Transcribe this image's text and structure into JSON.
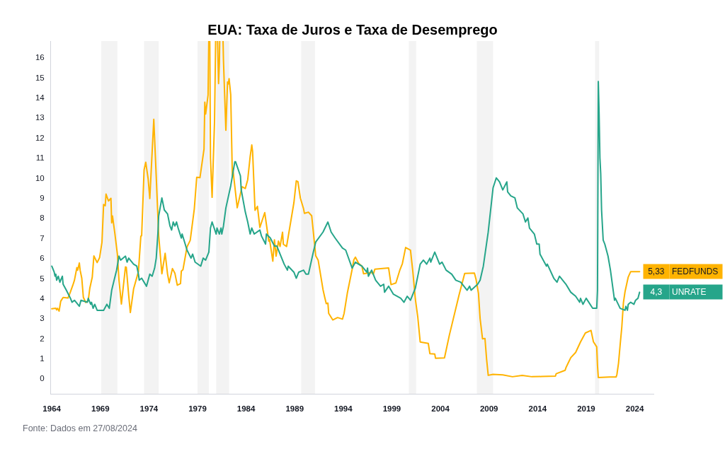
{
  "chart_data": {
    "type": "line",
    "title": "EUA: Taxa de Juros e Taxa de Desemprego",
    "annotations": [
      "Fonte: Dados em 27/08/2024"
    ],
    "legend": "right",
    "xlim": [
      "1963-12",
      "2026-01"
    ],
    "xticks": [
      "1964",
      "1969",
      "1974",
      "1979",
      "1984",
      "1989",
      "1994",
      "1999",
      "2004",
      "2009",
      "2014",
      "2019",
      "2024"
    ],
    "ylim": [
      -0.76,
      16.82
    ],
    "yticks": [
      0,
      1,
      2,
      3,
      4,
      5,
      6,
      7,
      8,
      9,
      10,
      11,
      12,
      13,
      14,
      15,
      16
    ],
    "bands": [
      {
        "axis": "x",
        "from": "1969-02",
        "to": "1970-10",
        "color": "#f3f3f3"
      },
      {
        "axis": "x",
        "from": "1973-07",
        "to": "1975-01",
        "color": "#f3f3f3"
      },
      {
        "axis": "x",
        "from": "1979-01",
        "to": "1980-03",
        "color": "#f3f3f3"
      },
      {
        "axis": "x",
        "from": "1980-12",
        "to": "1982-04",
        "color": "#f3f3f3"
      },
      {
        "axis": "x",
        "from": "1989-09",
        "to": "1991-02",
        "color": "#f3f3f3"
      },
      {
        "axis": "x",
        "from": "2000-10",
        "to": "2001-07",
        "color": "#f3f3f3"
      },
      {
        "axis": "x",
        "from": "2007-10",
        "to": "2009-06",
        "color": "#f3f3f3"
      },
      {
        "axis": "x",
        "from": "2019-12",
        "to": "2020-05",
        "color": "#f3f3f3"
      }
    ],
    "series": [
      {
        "name": "FEDFUNDS",
        "color": "#ffb300",
        "x": [
          "1964-01",
          "1964-06",
          "1964-07",
          "1964-08",
          "1964-10",
          "1964-12",
          "1965-03",
          "1965-09",
          "1965-12",
          "1966-03",
          "1966-05",
          "1966-08",
          "1966-09",
          "1966-11",
          "1966-12",
          "1967-02",
          "1967-04",
          "1967-07",
          "1967-10",
          "1967-12",
          "1968-03",
          "1968-05",
          "1968-09",
          "1968-12",
          "1969-03",
          "1969-05",
          "1969-07",
          "1969-08",
          "1969-11",
          "1970-02",
          "1970-03",
          "1970-04",
          "1970-07",
          "1970-10",
          "1970-12",
          "1971-03",
          "1971-08",
          "1971-09",
          "1971-12",
          "1972-02",
          "1972-06",
          "1972-12",
          "1973-03",
          "1973-04",
          "1973-07",
          "1973-09",
          "1973-12",
          "1974-02",
          "1974-07",
          "1974-10",
          "1975-01",
          "1975-05",
          "1975-09",
          "1975-12",
          "1976-02",
          "1976-06",
          "1976-09",
          "1976-12",
          "1977-04",
          "1977-05",
          "1977-07",
          "1977-12",
          "1978-04",
          "1978-09",
          "1978-12",
          "1979-04",
          "1979-09",
          "1979-10",
          "1979-11",
          "1980-02",
          "1980-02-27",
          "1980-03",
          "1980-04-05",
          "1980-05",
          "1980-07",
          "1980-10",
          "1980-11",
          "1980-11-10",
          "1980-12",
          "1981-01-23",
          "1981-03",
          "1981-04",
          "1981-04-13",
          "1981-06",
          "1981-08-17",
          "1981-09",
          "1981-12",
          "1982-02",
          "1982-03",
          "1982-04",
          "1982-06",
          "1982-08",
          "1982-09",
          "1983-02",
          "1983-08",
          "1983-12",
          "1984-03",
          "1984-06",
          "1984-08",
          "1984-09",
          "1984-12",
          "1985-03",
          "1985-06",
          "1985-12",
          "1986-05",
          "1986-06",
          "1986-10",
          "1986-12",
          "1987-02",
          "1987-05",
          "1987-07",
          "1987-10",
          "1987-11",
          "1988-03",
          "1988-12",
          "1989-03",
          "1989-05",
          "1989-08",
          "1989-12",
          "1990-01",
          "1990-06",
          "1990-10",
          "1990-12",
          "1991-03",
          "1991-06",
          "1991-12",
          "1992-02",
          "1992-04",
          "1992-06",
          "1992-07",
          "1992-12",
          "1993-06",
          "1993-12",
          "1994-02",
          "1994-06",
          "1994-12",
          "1995-02",
          "1995-04",
          "1995-08",
          "1995-12",
          "1996-02",
          "1996-12",
          "1997-02",
          "1997-04",
          "1998-09",
          "1998-12",
          "1999-06",
          "1999-11",
          "2000-02",
          "2000-06",
          "2000-12",
          "2001-03",
          "2001-06",
          "2001-09",
          "2001-12",
          "2002-10",
          "2002-12",
          "2003-06",
          "2003-07",
          "2004-06",
          "2004-12",
          "2005-12",
          "2006-07",
          "2007-07",
          "2007-09",
          "2007-12",
          "2008-02",
          "2008-05",
          "2008-08",
          "2008-10",
          "2008-12",
          "2009-06",
          "2010-06",
          "2011-06",
          "2012-06",
          "2013-06",
          "2014-06",
          "2015-11",
          "2015-12",
          "2016-11",
          "2016-12",
          "2017-03",
          "2017-06",
          "2017-12",
          "2018-06",
          "2018-12",
          "2019-07",
          "2019-10",
          "2020-02",
          "2020-03",
          "2020-04",
          "2021-06",
          "2022-02",
          "2022-03",
          "2022-05",
          "2022-07",
          "2022-09",
          "2022-11",
          "2023-01",
          "2023-05",
          "2023-08",
          "2024-07"
        ],
        "values": [
          3.48,
          3.5,
          3.42,
          3.5,
          3.36,
          3.85,
          4.04,
          4.01,
          4.32,
          4.65,
          4.9,
          5.53,
          5.4,
          5.76,
          5.4,
          5.0,
          4.05,
          3.79,
          3.88,
          4.51,
          5.05,
          6.11,
          5.78,
          6.02,
          6.79,
          8.67,
          8.61,
          9.19,
          8.85,
          8.98,
          7.76,
          8.1,
          7.21,
          6.2,
          4.9,
          3.71,
          5.56,
          5.55,
          4.14,
          3.29,
          4.46,
          5.33,
          7.09,
          7.12,
          10.4,
          10.78,
          9.95,
          8.97,
          12.92,
          10.06,
          7.13,
          5.22,
          6.24,
          5.2,
          4.77,
          5.48,
          5.25,
          4.65,
          4.73,
          5.35,
          5.42,
          6.56,
          6.89,
          8.45,
          10.03,
          10.01,
          11.43,
          13.77,
          13.18,
          14.13,
          16.8,
          null,
          16.8,
          10.98,
          9.03,
          12.81,
          15.85,
          16.8,
          null,
          16.8,
          14.7,
          15.72,
          16.8,
          null,
          16.8,
          15.87,
          12.37,
          14.78,
          14.68,
          14.94,
          14.15,
          10.12,
          10.31,
          8.51,
          9.56,
          9.47,
          9.91,
          11.06,
          11.64,
          11.3,
          8.38,
          8.58,
          7.53,
          8.27,
          6.85,
          6.92,
          5.85,
          6.91,
          6.1,
          6.85,
          6.58,
          7.29,
          6.69,
          6.58,
          8.76,
          9.85,
          9.81,
          8.99,
          8.45,
          8.23,
          8.29,
          8.11,
          7.31,
          6.12,
          5.9,
          4.43,
          4.06,
          3.73,
          3.76,
          3.25,
          2.92,
          3.04,
          2.96,
          3.25,
          4.25,
          5.45,
          5.92,
          6.05,
          5.74,
          5.6,
          5.22,
          5.29,
          5.19,
          5.45,
          5.51,
          4.68,
          4.76,
          5.42,
          5.73,
          6.53,
          6.4,
          5.31,
          3.97,
          3.07,
          1.82,
          1.75,
          1.24,
          1.22,
          1.01,
          1.03,
          2.16,
          4.16,
          5.24,
          5.26,
          4.94,
          4.24,
          2.98,
          1.98,
          2.0,
          0.97,
          0.16,
          0.21,
          0.18,
          0.09,
          0.16,
          0.09,
          0.1,
          0.12,
          0.24,
          0.41,
          0.54,
          0.79,
          1.04,
          1.3,
          1.82,
          2.27,
          2.4,
          1.83,
          1.58,
          0.65,
          0.05,
          0.08,
          0.08,
          0.2,
          0.77,
          1.68,
          2.56,
          3.78,
          4.33,
          5.06,
          5.33,
          5.33
        ],
        "value_labels": [
          null,
          null,
          null,
          null,
          null,
          null,
          null,
          null,
          null,
          null,
          null,
          null,
          null,
          null,
          null,
          null,
          null,
          null,
          null,
          null,
          null,
          null,
          null,
          null,
          null,
          null,
          null,
          null,
          null,
          null,
          null,
          null,
          null,
          null,
          null,
          null,
          null,
          null,
          null,
          null,
          null,
          null,
          null,
          null,
          null,
          null,
          null,
          null,
          null,
          null,
          null,
          null,
          null,
          null,
          null,
          null,
          null,
          null,
          null,
          null,
          null,
          null,
          null,
          null,
          null,
          null,
          null,
          null,
          null,
          null,
          null,
          null,
          null,
          null,
          null,
          null,
          null,
          null,
          null,
          null,
          null,
          null,
          null,
          null,
          null,
          null,
          null,
          null,
          null,
          null,
          null,
          null,
          null,
          null,
          null,
          null,
          null,
          null,
          null,
          null,
          null,
          null,
          null,
          null,
          null,
          null,
          null,
          null,
          null,
          null,
          null,
          null,
          null,
          null,
          null,
          null,
          null,
          null,
          null,
          null,
          null,
          null,
          null,
          null,
          null,
          null,
          null,
          null,
          null,
          null,
          null,
          null,
          null,
          null,
          null,
          null,
          null,
          null,
          null,
          null,
          null,
          null,
          null,
          null,
          null,
          null,
          null,
          null,
          null,
          null,
          null,
          null,
          null,
          null,
          null,
          null,
          null,
          null,
          null,
          null,
          null,
          null,
          null,
          null,
          null,
          null,
          null,
          null,
          null,
          null,
          null,
          null,
          null,
          null,
          null,
          null,
          null,
          null,
          null,
          null,
          null,
          null,
          null,
          null,
          null,
          null,
          null,
          null,
          null,
          null,
          null,
          null,
          null,
          null,
          null,
          null,
          null,
          null,
          null,
          null,
          null,
          "5,33"
        ]
      },
      {
        "name": "UNRATE",
        "color": "#26a58a",
        "x": [
          "1964-01",
          "1964-04",
          "1964-05",
          "1964-06",
          "1964-07",
          "1964-09",
          "1964-11",
          "1965-02",
          "1965-03",
          "1965-07",
          "1965-12",
          "1966-02",
          "1966-05",
          "1966-11",
          "1967-01",
          "1967-09",
          "1967-10",
          "1968-01",
          "1968-02",
          "1968-04",
          "1968-06",
          "1968-09",
          "1969-05",
          "1969-09",
          "1969-12",
          "1970-03",
          "1970-06",
          "1970-09",
          "1970-12",
          "1971-02",
          "1971-08",
          "1971-10",
          "1971-12",
          "1972-06",
          "1972-10",
          "1972-12",
          "1973-01",
          "1973-04",
          "1973-10",
          "1974-02",
          "1974-05",
          "1974-08",
          "1974-10",
          "1974-12",
          "1975-01",
          "1975-05",
          "1975-08",
          "1975-12",
          "1976-03",
          "1976-05",
          "1976-07",
          "1976-09",
          "1976-11",
          "1977-01",
          "1977-05",
          "1977-06",
          "1977-12",
          "1978-05",
          "1978-07",
          "1978-10",
          "1979-05",
          "1979-08",
          "1979-11",
          "1980-03",
          "1980-05",
          "1980-07",
          "1980-12",
          "1981-01",
          "1981-04",
          "1981-06",
          "1981-07",
          "1981-09",
          "1981-12",
          "1982-06",
          "1982-11",
          "1982-12",
          "1983-06",
          "1983-07",
          "1983-12",
          "1984-03",
          "1984-06",
          "1984-08",
          "1984-11",
          "1985-06",
          "1985-08",
          "1986-01",
          "1986-02",
          "1986-07",
          "1986-12",
          "1987-03",
          "1987-12",
          "1988-04",
          "1988-05",
          "1988-12",
          "1989-03",
          "1989-06",
          "1989-12",
          "1990-03",
          "1990-06",
          "1990-12",
          "1991-03",
          "1991-12",
          "1992-06",
          "1992-10",
          "1993-03",
          "1993-12",
          "1994-04",
          "1994-12",
          "1995-04",
          "1995-12",
          "1996-06",
          "1996-07",
          "1996-08",
          "1996-12",
          "1997-05",
          "1997-11",
          "1998-03",
          "1998-04",
          "1998-09",
          "1999-03",
          "1999-12",
          "2000-04",
          "2000-08",
          "2000-12",
          "2001-06",
          "2001-12",
          "2002-04",
          "2002-08",
          "2002-12",
          "2003-01",
          "2003-06",
          "2003-12",
          "2004-03",
          "2004-08",
          "2005-03",
          "2005-08",
          "2006-02",
          "2006-10",
          "2007-01",
          "2007-03",
          "2007-11",
          "2008-02",
          "2008-06",
          "2008-12",
          "2009-06",
          "2009-10",
          "2010-02",
          "2010-06",
          "2010-11",
          "2010-12",
          "2011-04",
          "2011-09",
          "2011-12",
          "2012-07",
          "2012-10",
          "2013-01",
          "2013-03",
          "2013-09",
          "2013-12",
          "2014-03",
          "2014-04",
          "2014-12",
          "2015-01",
          "2015-09",
          "2016-01",
          "2016-04",
          "2016-12",
          "2017-06",
          "2017-12",
          "2018-05",
          "2018-06",
          "2018-09",
          "2019-01",
          "2019-09",
          "2020-02",
          "2020-03",
          "2020-04",
          "2020-05",
          "2020-06",
          "2020-07",
          "2020-08",
          "2020-10",
          "2020-12",
          "2021-04",
          "2021-07",
          "2021-12",
          "2022-01",
          "2022-07",
          "2023-01",
          "2023-02",
          "2023-04",
          "2023-05",
          "2023-08",
          "2023-12",
          "2024-02",
          "2024-05",
          "2024-07"
        ],
        "values": [
          5.6,
          5.3,
          5.1,
          5.2,
          4.9,
          5.1,
          4.8,
          5.1,
          4.7,
          4.4,
          4.0,
          3.8,
          3.9,
          3.6,
          3.9,
          3.8,
          4.0,
          3.7,
          3.8,
          3.5,
          3.7,
          3.4,
          3.4,
          3.7,
          3.5,
          4.4,
          4.9,
          5.4,
          6.1,
          5.9,
          6.1,
          5.8,
          6.0,
          5.7,
          5.6,
          5.2,
          4.9,
          5.0,
          4.6,
          5.2,
          5.1,
          5.5,
          6.0,
          7.2,
          8.1,
          9.0,
          8.4,
          8.2,
          7.6,
          7.4,
          7.8,
          7.6,
          7.8,
          7.5,
          7.0,
          7.2,
          6.4,
          6.0,
          6.2,
          5.8,
          5.6,
          6.0,
          5.9,
          6.3,
          7.5,
          7.8,
          7.2,
          7.5,
          7.2,
          7.5,
          7.2,
          7.6,
          8.5,
          9.6,
          10.8,
          10.8,
          10.1,
          9.4,
          8.3,
          7.8,
          7.2,
          7.5,
          7.2,
          7.4,
          7.1,
          6.7,
          7.2,
          7.0,
          6.6,
          6.6,
          5.7,
          5.4,
          5.6,
          5.3,
          5.0,
          5.3,
          5.4,
          5.2,
          5.2,
          6.3,
          6.8,
          7.3,
          7.8,
          7.3,
          7.0,
          6.5,
          6.4,
          5.5,
          5.8,
          5.6,
          5.3,
          5.5,
          5.1,
          5.4,
          4.9,
          4.6,
          4.7,
          4.3,
          4.6,
          4.2,
          4.0,
          3.8,
          4.1,
          3.9,
          4.5,
          5.7,
          5.9,
          5.7,
          6.0,
          5.8,
          6.3,
          5.7,
          5.8,
          5.4,
          5.2,
          4.9,
          4.8,
          4.4,
          4.6,
          4.4,
          4.7,
          4.9,
          5.6,
          7.3,
          9.5,
          10.0,
          9.8,
          9.4,
          9.8,
          9.3,
          9.1,
          9.0,
          8.5,
          8.2,
          7.8,
          8.0,
          7.5,
          7.2,
          6.7,
          6.7,
          6.2,
          5.6,
          5.7,
          5.0,
          4.8,
          5.1,
          4.7,
          4.3,
          4.1,
          3.8,
          4.0,
          3.7,
          4.0,
          3.5,
          3.5,
          4.4,
          14.8,
          13.2,
          11.0,
          10.2,
          8.4,
          6.9,
          6.7,
          6.1,
          5.4,
          3.9,
          4.0,
          3.5,
          3.4,
          3.6,
          3.4,
          3.7,
          3.8,
          3.7,
          3.9,
          4.0,
          4.3
        ],
        "value_labels": [
          null,
          null,
          null,
          null,
          null,
          null,
          null,
          null,
          null,
          null,
          null,
          null,
          null,
          null,
          null,
          null,
          null,
          null,
          null,
          null,
          null,
          null,
          null,
          null,
          null,
          null,
          null,
          null,
          null,
          null,
          null,
          null,
          null,
          null,
          null,
          null,
          null,
          null,
          null,
          null,
          null,
          null,
          null,
          null,
          null,
          null,
          null,
          null,
          null,
          null,
          null,
          null,
          null,
          null,
          null,
          null,
          null,
          null,
          null,
          null,
          null,
          null,
          null,
          null,
          null,
          null,
          null,
          null,
          null,
          null,
          null,
          null,
          null,
          null,
          null,
          null,
          null,
          null,
          null,
          null,
          null,
          null,
          null,
          null,
          null,
          null,
          null,
          null,
          null,
          null,
          null,
          null,
          null,
          null,
          null,
          null,
          null,
          null,
          null,
          null,
          null,
          null,
          null,
          null,
          null,
          null,
          null,
          null,
          null,
          null,
          null,
          null,
          null,
          null,
          null,
          null,
          null,
          null,
          null,
          null,
          null,
          null,
          null,
          null,
          null,
          null,
          null,
          null,
          null,
          null,
          null,
          null,
          null,
          null,
          null,
          null,
          null,
          null,
          null,
          null,
          null,
          null,
          null,
          null,
          null,
          null,
          null,
          null,
          null,
          null,
          null,
          null,
          null,
          null,
          null,
          null,
          null,
          null,
          null,
          null,
          null,
          null,
          null,
          null,
          null,
          null,
          null,
          null,
          null,
          null,
          null,
          null,
          null,
          null,
          null,
          null,
          null,
          null,
          null,
          null,
          null,
          null,
          null,
          null,
          null,
          null,
          null,
          null,
          null,
          null,
          null,
          null,
          null,
          null,
          null,
          null,
          "4,3"
        ]
      }
    ]
  }
}
